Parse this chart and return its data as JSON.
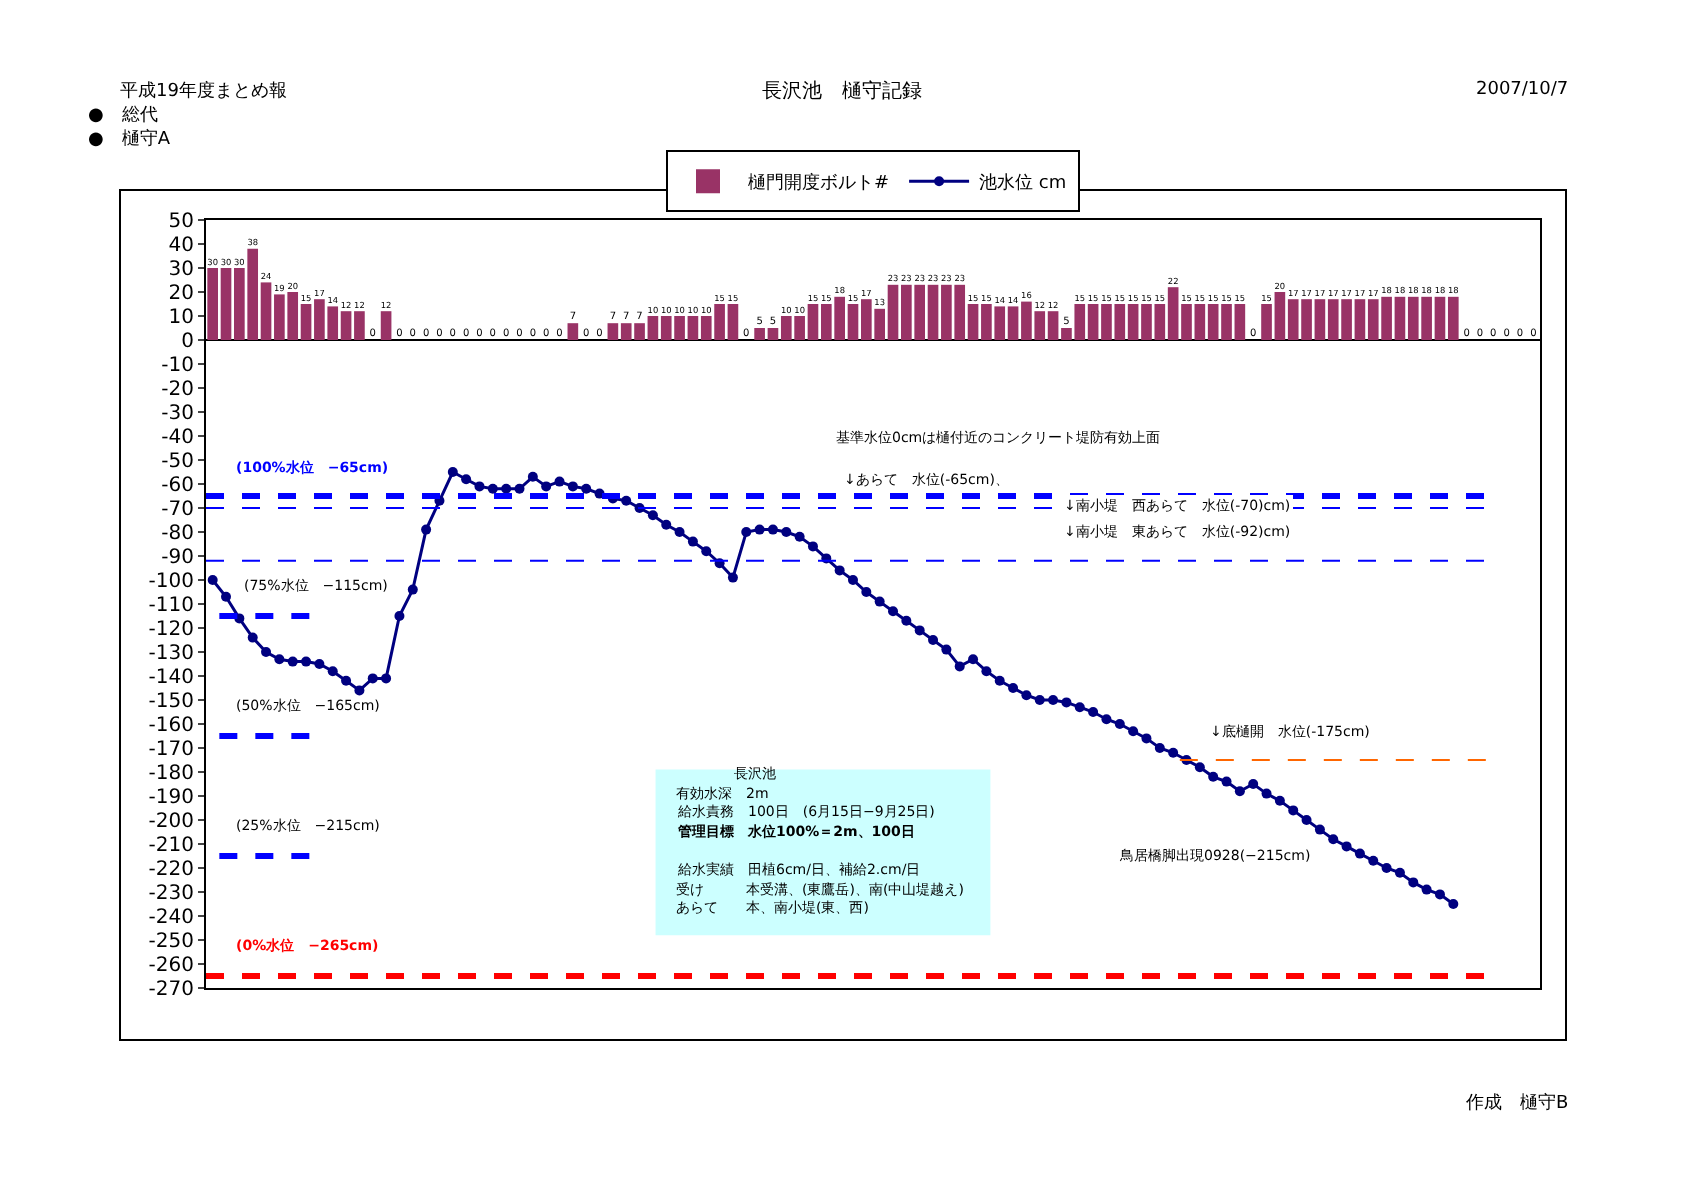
{
  "chart_data": {
    "type": "bar",
    "title": "長沢池　樋守記録",
    "categories": [
      null,
      null,
      null,
      null,
      null,
      null,
      null,
      null,
      null,
      null,
      null,
      null,
      null,
      null,
      null,
      null,
      null,
      null,
      null,
      null,
      null,
      null,
      null,
      null,
      null,
      null,
      null,
      null,
      null,
      null,
      null,
      null,
      null,
      null,
      null,
      null,
      null,
      null,
      null,
      null,
      null,
      null,
      null,
      null,
      null,
      null,
      null,
      null,
      null,
      null,
      null,
      null,
      null,
      null,
      null,
      null,
      null,
      null,
      null,
      null,
      null,
      null,
      null,
      null,
      null,
      null,
      null,
      null,
      null,
      null,
      null,
      null,
      null,
      null,
      null,
      null,
      null,
      null,
      null,
      null,
      null,
      null,
      null,
      null,
      null,
      null,
      null,
      null,
      null,
      null,
      null,
      null,
      null,
      null,
      null,
      null,
      null,
      null,
      null,
      null
    ],
    "series": [
      {
        "name": "樋門開度ボルト#",
        "color": "#993366",
        "values": [
          30,
          30,
          30,
          38,
          24,
          19,
          20,
          15,
          17,
          14,
          12,
          12,
          0,
          12,
          0,
          0,
          0,
          0,
          0,
          0,
          0,
          0,
          0,
          0,
          0,
          0,
          0,
          7,
          0,
          0,
          7,
          7,
          7,
          10,
          10,
          10,
          10,
          10,
          15,
          15,
          0,
          5,
          5,
          10,
          10,
          15,
          15,
          18,
          15,
          17,
          13,
          23,
          23,
          23,
          23,
          23,
          23,
          15,
          15,
          14,
          14,
          16,
          12,
          12,
          5,
          15,
          15,
          15,
          15,
          15,
          15,
          15,
          22,
          15,
          15,
          15,
          15,
          15,
          0,
          15,
          20,
          17,
          17,
          17,
          17,
          17,
          17,
          17,
          18,
          18,
          18,
          18,
          18,
          18,
          0,
          0,
          0,
          0,
          0,
          0
        ],
        "value_labels": [
          "30",
          "30",
          "30",
          "38",
          "24",
          "19",
          "20",
          "15",
          "17",
          "14",
          "12",
          "12",
          "0",
          "12",
          "0",
          "0",
          "0",
          "0",
          "0",
          "0",
          "0",
          "0",
          "0",
          "0",
          "0",
          "0",
          "0",
          "7",
          "0",
          "0",
          "7",
          "7",
          "7",
          "10",
          "10",
          "10",
          "10",
          "10",
          "15",
          "15",
          "0",
          "5",
          "5",
          "10",
          "10",
          "15",
          "15",
          "18",
          "15",
          "17",
          "13",
          "23",
          "23",
          "23",
          "23",
          "23",
          "23",
          "15",
          "15",
          "14",
          "14",
          "16",
          "12",
          "12",
          "5",
          "15",
          "15",
          "15",
          "15",
          "15",
          "15",
          "15",
          "22",
          "15",
          "15",
          "15",
          "15",
          "15",
          "0",
          "15",
          "20",
          "17",
          "17",
          "17",
          "17",
          "17",
          "17",
          "17",
          "18",
          "18",
          "18",
          "18",
          "18",
          "18",
          "0",
          "0",
          "0",
          "0",
          "0",
          "0"
        ]
      },
      {
        "name": "池水位 cm",
        "type": "line",
        "color": "#000080",
        "marker": "circle",
        "line_style": "solid",
        "values": [
          -100,
          -107,
          -116,
          -124,
          -130,
          -133,
          -134,
          -134,
          -135,
          -138,
          -142,
          -146,
          -141,
          -141,
          -115,
          -104,
          -79,
          -67,
          -55,
          -58,
          -61,
          -62,
          -62,
          -62,
          -57,
          -61,
          -59,
          -61,
          -62,
          -64,
          -66,
          -67,
          -70,
          -73,
          -77,
          -80,
          -84,
          -88,
          -93,
          -99,
          -80,
          -79,
          -79,
          -80,
          -82,
          -86,
          -91,
          -96,
          -100,
          -105,
          -109,
          -113,
          -117,
          -121,
          -125,
          -129,
          -136,
          -133,
          -138,
          -142,
          -145,
          -148,
          -150,
          -150,
          -151,
          -153,
          -155,
          -158,
          -160,
          -163,
          -166,
          -170,
          -172,
          -175,
          -178,
          -182,
          -184,
          -188,
          -185,
          -189,
          -192,
          -196,
          -200,
          -204,
          -208,
          -211,
          -214,
          -217,
          -220,
          -222,
          -226,
          -229,
          -231,
          -235,
          null,
          null,
          null,
          null,
          null,
          null
        ]
      }
    ],
    "ylim": [
      -270,
      50
    ],
    "yticks": [
      50,
      40,
      30,
      20,
      10,
      0,
      -10,
      -20,
      -30,
      -40,
      -50,
      -60,
      -70,
      -80,
      -90,
      -100,
      -110,
      -120,
      -130,
      -140,
      -150,
      -160,
      -170,
      -180,
      -190,
      -200,
      -210,
      -220,
      -230,
      -240,
      -250,
      -260,
      -270
    ],
    "tick_labels": "y",
    "grid": false,
    "legend": "top",
    "ref_lines": [
      {
        "axis": "y",
        "value": -65,
        "label": "(100%水位　−65cm)",
        "color": "#0000ff",
        "line_style": "dashed"
      },
      {
        "axis": "y",
        "value": -70,
        "label": "↓南小堤　西あらて　水位(-70)cm)",
        "color": "#0000ff",
        "line_style": "dashed"
      },
      {
        "axis": "y",
        "value": -92,
        "label": "↓南小堤　東あらて　水位(-92)cm)",
        "color": "#0000ff",
        "line_style": "dashed"
      },
      {
        "axis": "y",
        "value": -115,
        "label": "(75%水位　−115cm)",
        "color": "#0000ff",
        "line_style": "dashed"
      },
      {
        "axis": "y",
        "value": -165,
        "label": "(50%水位　−165cm)",
        "color": "#0000ff",
        "line_style": "dashed"
      },
      {
        "axis": "y",
        "value": -215,
        "label": "(25%水位　−215cm)",
        "color": "#0000ff",
        "line_style": "dashed"
      },
      {
        "axis": "y",
        "value": -175,
        "label": "↓底樋開　水位(-175cm)",
        "color": "#ff6600",
        "line_style": "dashed"
      },
      {
        "axis": "y",
        "value": -265,
        "label": "(0%水位　−265cm)",
        "color": "#ff0000",
        "line_style": "dashed"
      }
    ],
    "annotations": [
      "平成19年度まとめ報",
      "●　総代",
      "●　樋守A",
      "2007/10/7",
      "作成　樋守B",
      "基準水位0cmは樋付近のコンクリート堤防有効上面",
      {
        "text": "↓あらて　水位(-65cm)、",
        "y": -65
      },
      "鳥居橋脚出現0928(−215cm)",
      "長沢池",
      "有効水深　2m",
      "給水責務　100日　(6月15日−9月25日)",
      "管理目標　水位100%＝2m、100日",
      "給水実績　田植6cm/日、補給2.cm/日",
      "受け　　　本受溝、(東鷹岳)、南(中山堤越え)",
      "あらて　　本、南小堤(東、西)"
    ]
  }
}
